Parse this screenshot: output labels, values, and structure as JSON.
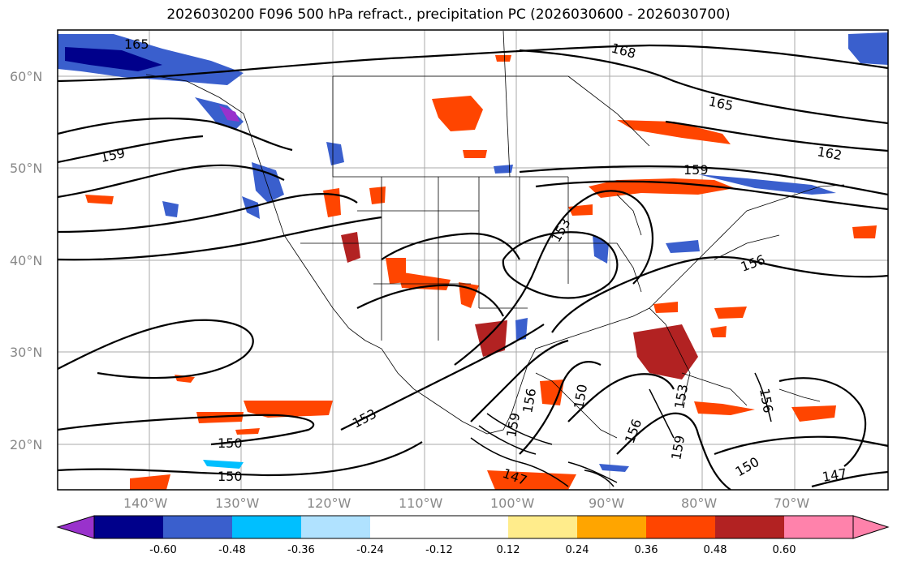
{
  "title": "2026030200 F096 500 hPa refract., precipitation PC (2026030600 - 2026030700)",
  "lat_labels": [
    "60°N",
    "50°N",
    "40°N",
    "30°N",
    "20°N"
  ],
  "lon_labels": [
    "140°W",
    "130°W",
    "120°W",
    "110°W",
    "100°W",
    "90°W",
    "80°W",
    "70°W"
  ],
  "colorbar": {
    "ticks": [
      "-0.60",
      "-0.48",
      "-0.36",
      "-0.24",
      "-0.12",
      "0.12",
      "0.24",
      "0.36",
      "0.48",
      "0.60"
    ],
    "colors": [
      "#9932cc",
      "#00008b",
      "#3a5fcd",
      "#00bfff",
      "#b0e2ff",
      "#ffffff",
      "#ffec8b",
      "#ffa500",
      "#ff4500",
      "#b22222",
      "#ff82ab"
    ]
  },
  "isoline_labels": [
    "165",
    "168",
    "165",
    "162",
    "159",
    "159",
    "153",
    "156",
    "150",
    "150",
    "153",
    "156",
    "159",
    "150",
    "156",
    "159",
    "147",
    "150",
    "153",
    "147",
    "156"
  ]
}
